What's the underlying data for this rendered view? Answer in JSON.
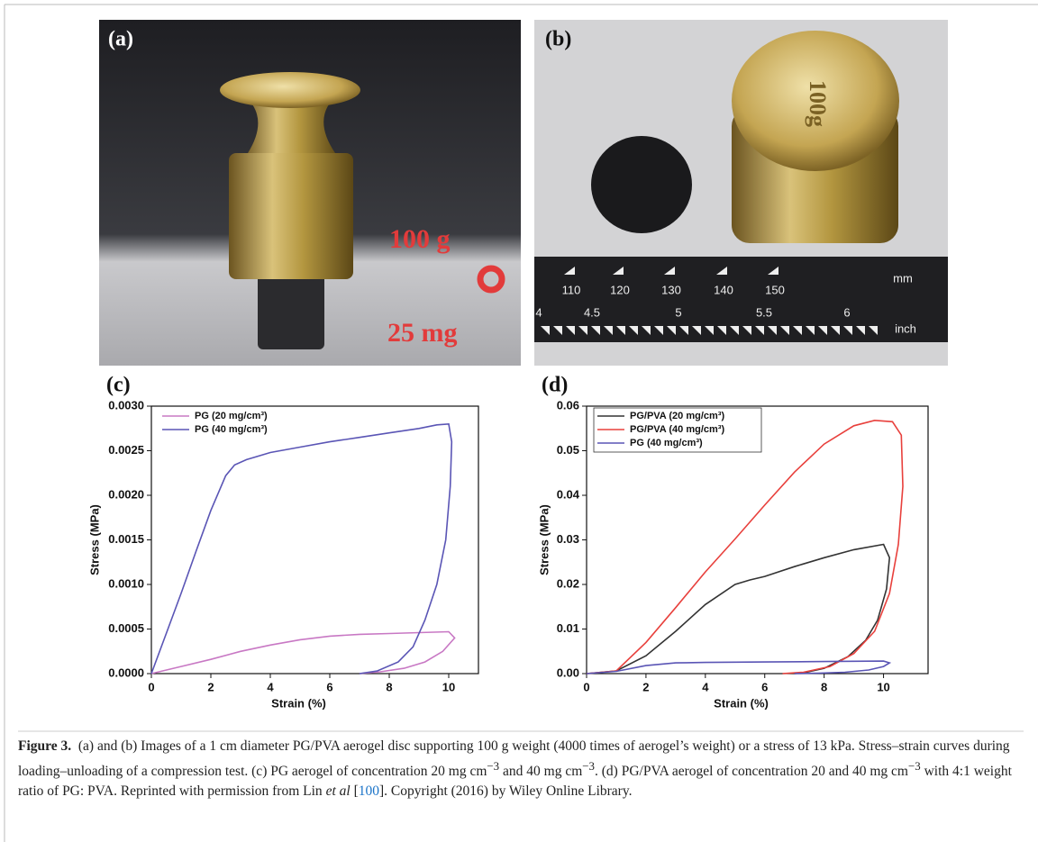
{
  "photos": {
    "a": {
      "label": "(a)",
      "weight": "100 g",
      "aerogel": "25 mg"
    },
    "b": {
      "label": "(b)",
      "engraving": "100g",
      "ruler_mm": [
        "110",
        "120",
        "130",
        "140",
        "150"
      ],
      "mm": "mm",
      "ruler_inch": [
        "4",
        "4.5",
        "5",
        "5.5",
        "6"
      ],
      "inch": "inch"
    }
  },
  "chart_data": [
    {
      "type": "line",
      "label": "(c)",
      "x_label": "Strain (%)",
      "y_label": "Stress (MPa)",
      "xlim": [
        0,
        11
      ],
      "ylim": [
        0,
        0.003
      ],
      "xticks": [
        0,
        2,
        4,
        6,
        8,
        10
      ],
      "yticks": [
        {
          "value": 0,
          "label": "0.0000"
        },
        {
          "value": 0.0005,
          "label": "0.0005"
        },
        {
          "value": 0.001,
          "label": "0.0010"
        },
        {
          "value": 0.0015,
          "label": "0.0015"
        },
        {
          "value": 0.002,
          "label": "0.0020"
        },
        {
          "value": 0.0025,
          "label": "0.0025"
        },
        {
          "value": 0.003,
          "label": "0.0030"
        }
      ],
      "legend": "upper left",
      "legend_frame": false,
      "series": [
        {
          "name": "PG (20 mg/cm³)",
          "color": "#c878c4",
          "x": [
            0,
            1,
            2,
            3,
            4,
            5,
            6,
            7,
            8,
            9,
            10,
            10.2,
            9.8,
            9.2,
            8.5,
            7.7,
            7
          ],
          "values": [
            0,
            8e-05,
            0.00016,
            0.00025,
            0.00032,
            0.00038,
            0.00042,
            0.00044,
            0.00045,
            0.00046,
            0.00047,
            0.0004,
            0.00025,
            0.00013,
            6e-05,
            2e-05,
            0
          ]
        },
        {
          "name": "PG (40 mg/cm³)",
          "color": "#5a55b5",
          "x": [
            0,
            0.5,
            1,
            1.5,
            2,
            2.5,
            2.8,
            3.2,
            4,
            5,
            6,
            7,
            8,
            9,
            9.6,
            10,
            10.1,
            10.05,
            9.9,
            9.6,
            9.2,
            8.8,
            8.3,
            7.6,
            7
          ],
          "values": [
            0,
            0.00045,
            0.0009,
            0.00137,
            0.00183,
            0.00222,
            0.00234,
            0.0024,
            0.00248,
            0.00254,
            0.0026,
            0.00265,
            0.0027,
            0.00275,
            0.00279,
            0.0028,
            0.0026,
            0.0021,
            0.0015,
            0.001,
            0.0006,
            0.0003,
            0.00013,
            3e-05,
            0
          ]
        }
      ]
    },
    {
      "type": "line",
      "label": "(d)",
      "x_label": "Strain (%)",
      "y_label": "Stress (MPa)",
      "xlim": [
        0,
        11.5
      ],
      "ylim": [
        0,
        0.06
      ],
      "xticks": [
        0,
        2,
        4,
        6,
        8,
        10
      ],
      "yticks": [
        {
          "value": 0,
          "label": "0.00"
        },
        {
          "value": 0.01,
          "label": "0.01"
        },
        {
          "value": 0.02,
          "label": "0.02"
        },
        {
          "value": 0.03,
          "label": "0.03"
        },
        {
          "value": 0.04,
          "label": "0.04"
        },
        {
          "value": 0.05,
          "label": "0.05"
        },
        {
          "value": 0.06,
          "label": "0.06"
        }
      ],
      "legend": "upper left",
      "legend_frame": true,
      "series": [
        {
          "name": "PG/PVA (20 mg/cm³)",
          "color": "#333333",
          "x": [
            0,
            1,
            2,
            3,
            4,
            5,
            5.5,
            6,
            7,
            8,
            9,
            10,
            10.2,
            10.1,
            9.8,
            9.4,
            8.8,
            8,
            7.4,
            7
          ],
          "values": [
            0,
            0.0006,
            0.004,
            0.0095,
            0.0155,
            0.02,
            0.021,
            0.0218,
            0.024,
            0.026,
            0.0278,
            0.029,
            0.026,
            0.019,
            0.012,
            0.0075,
            0.0038,
            0.0012,
            0.0003,
            0
          ]
        },
        {
          "name": "PG/PVA (40 mg/cm³)",
          "color": "#e8403c",
          "x": [
            0,
            1,
            2,
            3,
            4,
            5,
            6,
            7,
            8,
            9,
            9.7,
            10.3,
            10.6,
            10.65,
            10.5,
            10.2,
            9.7,
            9,
            8.2,
            7.3,
            6.6
          ],
          "values": [
            0,
            0.0006,
            0.007,
            0.0148,
            0.0228,
            0.0302,
            0.0378,
            0.0452,
            0.0515,
            0.0556,
            0.0568,
            0.0565,
            0.0535,
            0.042,
            0.029,
            0.018,
            0.0095,
            0.0045,
            0.0016,
            0.0003,
            0
          ]
        },
        {
          "name": "PG (40 mg/cm³)",
          "color": "#5a55b5",
          "x": [
            0,
            1,
            2,
            3,
            4,
            6,
            8,
            10,
            10.2,
            10,
            9.5,
            8.7,
            7.8,
            7
          ],
          "values": [
            0,
            0.0005,
            0.0018,
            0.0024,
            0.0025,
            0.0026,
            0.0027,
            0.0028,
            0.0024,
            0.0016,
            0.0008,
            0.0003,
            0.0001,
            0
          ]
        }
      ]
    }
  ],
  "caption": {
    "label": "Figure 3.",
    "segments": [
      "(a) and (b) Images of a 1 cm diameter PG/PVA aerogel disc supporting 100 g weight (4000 times of aerogel’s weight) or a stress of 13 kPa. Stress–strain curves during loading–unloading of a compression test. (c) PG aerogel of concentration 20 mg cm",
      "−3",
      " and 40 mg cm",
      "−3",
      ". (d) PG/PVA aerogel of concentration 20 and 40 mg cm",
      "−3",
      " with 4:1 weight ratio of PG: PVA. Reprinted with permission from Lin ",
      "et al",
      " [",
      "100",
      "]. Copyright (2016) by Wiley Online Library."
    ]
  }
}
